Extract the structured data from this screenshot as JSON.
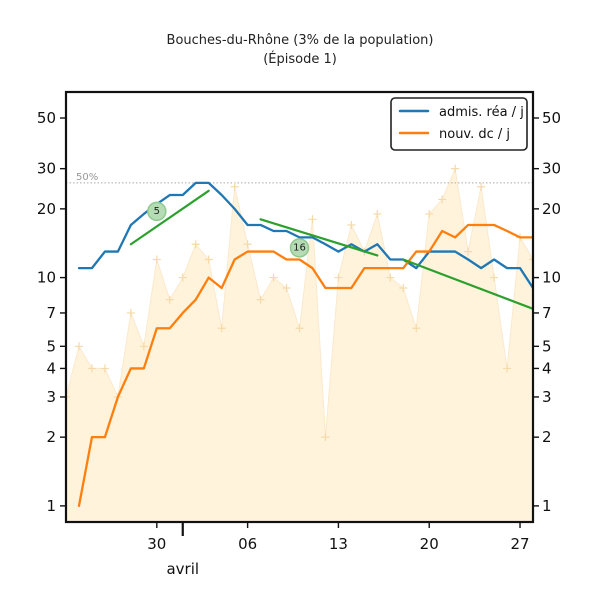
{
  "chart_data": {
    "type": "line",
    "title": "Bouches-du-Rhône (3% de la population)",
    "subtitle": "(Épisode 1)",
    "y_scale": "log",
    "ylim": [
      0.85,
      65
    ],
    "xlim": [
      "2020-03-23",
      "2020-04-28"
    ],
    "yticks": [
      1,
      2,
      3,
      4,
      5,
      7,
      10,
      20,
      30,
      50
    ],
    "xticks": [
      {
        "date": "2020-03-30",
        "label": "30"
      },
      {
        "date": "2020-04-06",
        "label": "06"
      },
      {
        "date": "2020-04-13",
        "label": "13"
      },
      {
        "date": "2020-04-20",
        "label": "20"
      },
      {
        "date": "2020-04-27",
        "label": "27"
      }
    ],
    "month_label": {
      "date": "2020-04-01",
      "label": "avril"
    },
    "grid": false,
    "legend_position": "top-right",
    "colors": {
      "adm": "#1f77b4",
      "dc": "#ff7f0e",
      "trend": "#2ca02c",
      "fill": "#fff3dc",
      "markers": "#f5d9a8",
      "ref": "#aaaaaa"
    },
    "reference_line": {
      "label": "50%",
      "value": 26
    },
    "series": [
      {
        "name": "admis. réa / j",
        "dates": [
          "2020-03-24",
          "2020-03-25",
          "2020-03-26",
          "2020-03-27",
          "2020-03-28",
          "2020-03-29",
          "2020-03-30",
          "2020-03-31",
          "2020-04-01",
          "2020-04-02",
          "2020-04-03",
          "2020-04-04",
          "2020-04-05",
          "2020-04-06",
          "2020-04-07",
          "2020-04-08",
          "2020-04-09",
          "2020-04-10",
          "2020-04-11",
          "2020-04-12",
          "2020-04-13",
          "2020-04-14",
          "2020-04-15",
          "2020-04-16",
          "2020-04-17",
          "2020-04-18",
          "2020-04-19",
          "2020-04-20",
          "2020-04-21",
          "2020-04-22",
          "2020-04-23",
          "2020-04-24",
          "2020-04-25",
          "2020-04-26",
          "2020-04-27",
          "2020-04-28"
        ],
        "values": [
          11,
          11,
          13,
          13,
          17,
          19,
          21,
          23,
          23,
          26,
          26,
          23,
          20,
          17,
          17,
          16,
          16,
          15,
          15,
          14,
          13,
          14,
          13,
          14,
          12,
          12,
          11,
          13,
          13,
          13,
          12,
          11,
          12,
          11,
          11,
          9
        ]
      },
      {
        "name": "nouv. dc / j",
        "dates": [
          "2020-03-24",
          "2020-03-25",
          "2020-03-26",
          "2020-03-27",
          "2020-03-28",
          "2020-03-29",
          "2020-03-30",
          "2020-03-31",
          "2020-04-01",
          "2020-04-02",
          "2020-04-03",
          "2020-04-04",
          "2020-04-05",
          "2020-04-06",
          "2020-04-07",
          "2020-04-08",
          "2020-04-09",
          "2020-04-10",
          "2020-04-11",
          "2020-04-12",
          "2020-04-13",
          "2020-04-14",
          "2020-04-15",
          "2020-04-16",
          "2020-04-17",
          "2020-04-18",
          "2020-04-19",
          "2020-04-20",
          "2020-04-21",
          "2020-04-22",
          "2020-04-23",
          "2020-04-24",
          "2020-04-25",
          "2020-04-26",
          "2020-04-27",
          "2020-04-28"
        ],
        "values": [
          1,
          2,
          2,
          3,
          4,
          4,
          6,
          6,
          7,
          8,
          10,
          9,
          12,
          13,
          13,
          13,
          12,
          12,
          11,
          9,
          9,
          9,
          11,
          11,
          11,
          11,
          13,
          13,
          16,
          15,
          17,
          17,
          17,
          16,
          15,
          15
        ]
      }
    ],
    "daily_points": {
      "dates": [
        "2020-03-23",
        "2020-03-24",
        "2020-03-25",
        "2020-03-26",
        "2020-03-27",
        "2020-03-28",
        "2020-03-29",
        "2020-03-30",
        "2020-03-31",
        "2020-04-01",
        "2020-04-02",
        "2020-04-03",
        "2020-04-04",
        "2020-04-05",
        "2020-04-06",
        "2020-04-07",
        "2020-04-08",
        "2020-04-09",
        "2020-04-10",
        "2020-04-11",
        "2020-04-12",
        "2020-04-13",
        "2020-04-14",
        "2020-04-15",
        "2020-04-16",
        "2020-04-17",
        "2020-04-18",
        "2020-04-19",
        "2020-04-20",
        "2020-04-21",
        "2020-04-22",
        "2020-04-23",
        "2020-04-24",
        "2020-04-25",
        "2020-04-26",
        "2020-04-27",
        "2020-04-28"
      ],
      "values": [
        3,
        5,
        4,
        4,
        3,
        7,
        5,
        12,
        8,
        10,
        14,
        12,
        6,
        25,
        14,
        8,
        10,
        9,
        6,
        18,
        2,
        10,
        17,
        13,
        19,
        10,
        9,
        6,
        19,
        22,
        30,
        13,
        25,
        10,
        4,
        15,
        12
      ]
    },
    "trend_segments": [
      {
        "start": "2020-03-28",
        "end": "2020-04-03",
        "y_start": 14,
        "y_end": 24,
        "label": "5",
        "label_date": "2020-03-30",
        "label_value": 19.5
      },
      {
        "start": "2020-04-07",
        "end": "2020-04-16",
        "y_start": 18,
        "y_end": 12.5,
        "label": "16",
        "label_date": "2020-04-10",
        "label_value": 13.5
      },
      {
        "start": "2020-04-18",
        "end": "2020-04-28",
        "y_start": 12,
        "y_end": 7.3,
        "label": "",
        "label_date": "",
        "label_value": 0
      }
    ]
  }
}
